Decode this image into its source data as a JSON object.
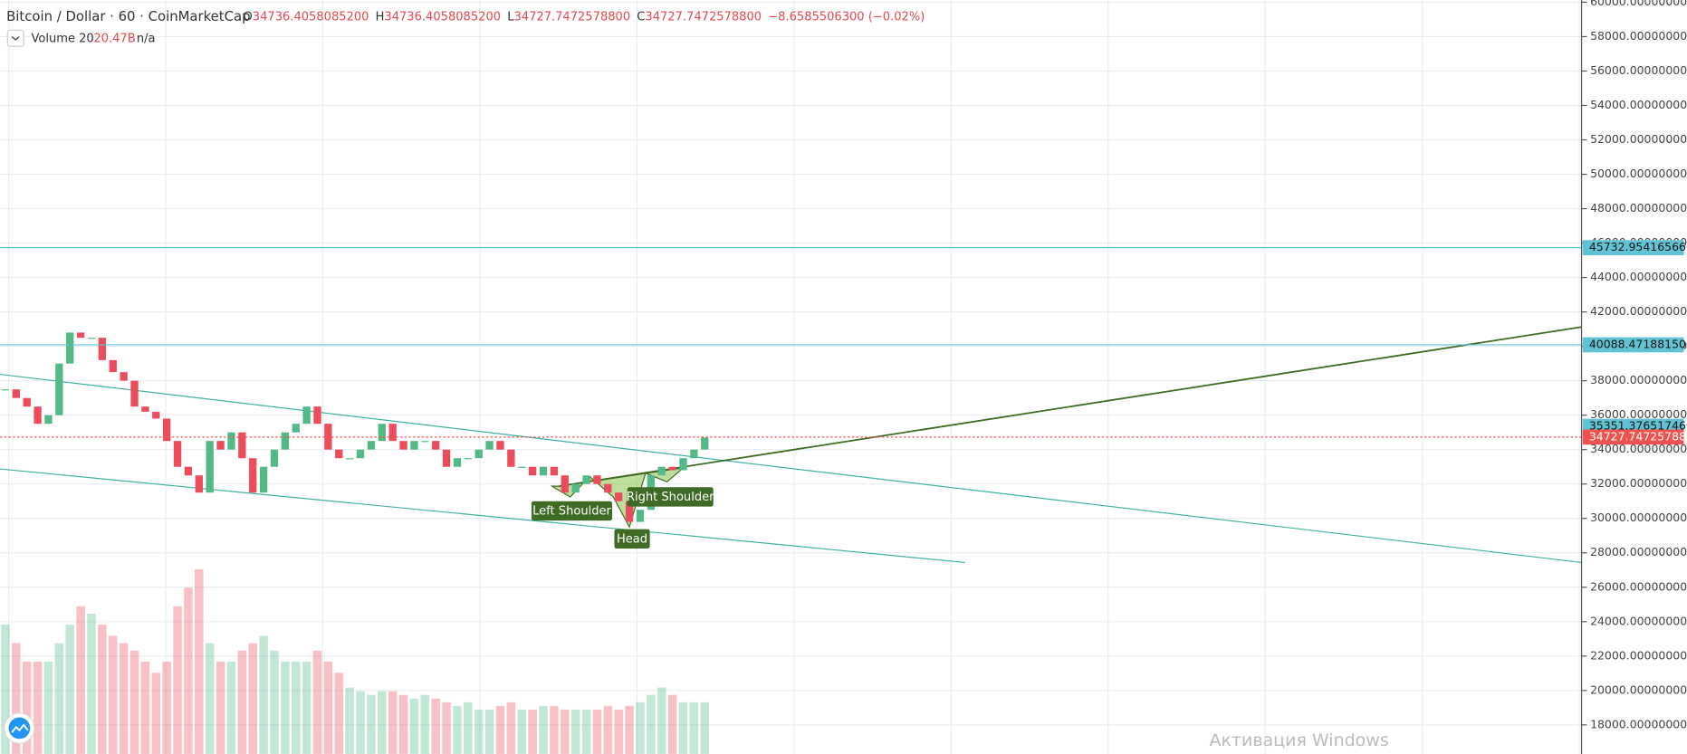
{
  "chart_data": {
    "type": "candlestick",
    "header": {
      "symbol": "Bitcoin / Dollar · 60 · CoinMarketCap",
      "ohlc": [
        {
          "key": "O",
          "value": "34736.4058085200"
        },
        {
          "key": "H",
          "value": "34736.4058085200"
        },
        {
          "key": "L",
          "value": "34727.7472578800"
        },
        {
          "key": "C",
          "value": "34727.7472578800"
        }
      ],
      "change": "−8.6585506300 (−0.02%)",
      "volume_name": "Volume 20",
      "volume_value": "20.47B",
      "volume_ma": "n/a"
    },
    "closes": [
      37500,
      37000,
      36500,
      35500,
      36000,
      39000,
      40800,
      40500,
      40500,
      39200,
      38500,
      38000,
      36500,
      36200,
      35800,
      34500,
      33000,
      32500,
      31500,
      34500,
      34000,
      35000,
      33500,
      31500,
      33000,
      34000,
      35000,
      35500,
      36500,
      35500,
      34000,
      33500,
      33500,
      34000,
      34500,
      35500,
      34500,
      34000,
      34500,
      34500,
      34000,
      33000,
      33500,
      33500,
      34000,
      34500,
      34000,
      33000,
      33000,
      32500,
      33000,
      32500,
      31500,
      32000,
      32500,
      32000,
      31500,
      31000,
      29800,
      30500,
      32500,
      33000,
      32800,
      33500,
      34000,
      34700
    ],
    "volume": {
      "values": [
        35,
        30,
        25,
        25,
        25,
        30,
        35,
        40,
        38,
        35,
        32,
        30,
        28,
        25,
        22,
        25,
        40,
        45,
        50,
        30,
        25,
        25,
        28,
        30,
        32,
        28,
        25,
        25,
        25,
        28,
        25,
        22,
        18,
        17,
        16,
        17,
        17,
        16,
        15,
        16,
        15,
        14,
        13,
        14,
        12,
        12,
        13,
        14,
        12,
        12,
        13,
        13,
        12,
        12,
        12,
        12,
        13,
        12,
        13,
        14,
        16,
        18,
        16,
        14,
        14,
        14
      ],
      "ylim": [
        0,
        60
      ]
    },
    "up_color": "#53b987",
    "down_color": "#eb4d5c",
    "ylim": [
      16312.5,
      60125
    ],
    "yticks": [
      {
        "value": 18000,
        "label": "18000.0000000000"
      },
      {
        "value": 20000,
        "label": "20000.0000000000"
      },
      {
        "value": 22000,
        "label": "22000.0000000000"
      },
      {
        "value": 24000,
        "label": "24000.0000000000"
      },
      {
        "value": 26000,
        "label": "26000.0000000000"
      },
      {
        "value": 28000,
        "label": "28000.0000000000"
      },
      {
        "value": 30000,
        "label": "30000.0000000000"
      },
      {
        "value": 32000,
        "label": "32000.0000000000"
      },
      {
        "value": 34000,
        "label": "34000.0000000000"
      },
      {
        "value": 36000,
        "label": "36000.0000000000"
      },
      {
        "value": 38000,
        "label": "38000.0000000000"
      },
      {
        "value": 40000,
        "label": "40000.0000000000"
      },
      {
        "value": 42000,
        "label": "42000.0000000000"
      },
      {
        "value": 44000,
        "label": "44000.0000000000"
      },
      {
        "value": 46000,
        "label": "46000.0000000000"
      },
      {
        "value": 48000,
        "label": "48000.0000000000"
      },
      {
        "value": 50000,
        "label": "50000.0000000000"
      },
      {
        "value": 52000,
        "label": "52000.0000000000"
      },
      {
        "value": 54000,
        "label": "54000.0000000000"
      },
      {
        "value": 56000,
        "label": "56000.0000000000"
      },
      {
        "value": 58000,
        "label": "58000.0000000000"
      },
      {
        "value": 60000,
        "label": "60000.0000000000"
      }
    ],
    "grid": true,
    "price_lines": [
      {
        "value": 45732.95416566,
        "label": "45732.9541656600",
        "color": "#5fc3d5",
        "line": true
      },
      {
        "value": 40088.4718815,
        "label": "40088.4718815000",
        "color": "#5fc3d5",
        "line": true
      },
      {
        "value": 35351.37651746,
        "label": "35351.3765174600",
        "color": "#5fc3d5",
        "line": false
      },
      {
        "value": 34727.74725788,
        "label": "34727.7472578800",
        "color": "#ef5350",
        "line": true
      }
    ],
    "annotations": [
      "Left Shoulder",
      "Right Shoulder",
      "Head"
    ],
    "watermark": "Активация Windows"
  }
}
